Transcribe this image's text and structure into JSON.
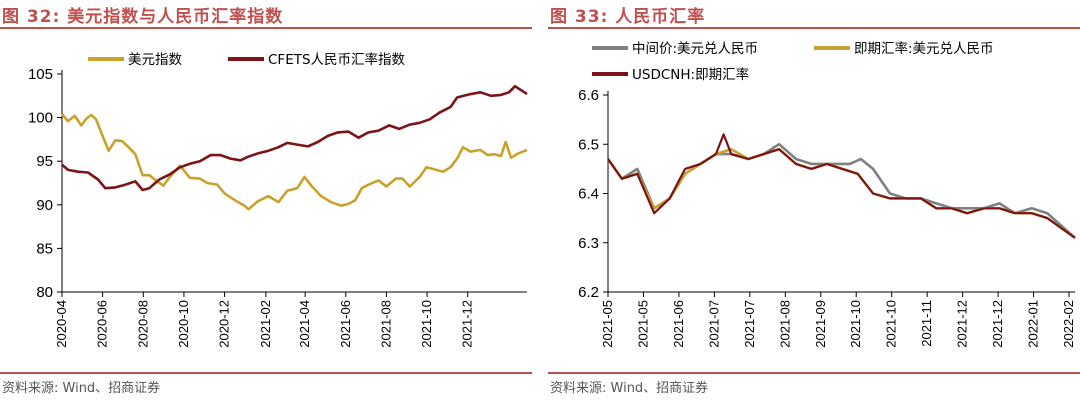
{
  "panels": [
    {
      "figure_title": "图 32:  美元指数与人民币汇率指数",
      "source": "资料来源:  Wind、招商证券",
      "chart_data": {
        "type": "line",
        "title": "",
        "xlabel": "",
        "ylabel": "",
        "ylim": [
          80,
          105
        ],
        "yticks": [
          80,
          85,
          90,
          95,
          100,
          105
        ],
        "grid": false,
        "legend": "top",
        "xlim": [
          "2020-04-01",
          "2022-02-28"
        ],
        "xticks": [
          "2020-04",
          "2020-06",
          "2020-08",
          "2020-10",
          "2020-12",
          "2021-02",
          "2021-04",
          "2021-06",
          "2021-08",
          "2021-10",
          "2021-12"
        ],
        "series": [
          {
            "name": "美元指数",
            "color": "#c9a22c",
            "points": [
              [
                "2020-04-01",
                100.4
              ],
              [
                "2020-04-10",
                99.6
              ],
              [
                "2020-04-20",
                100.2
              ],
              [
                "2020-04-30",
                99.1
              ],
              [
                "2020-05-08",
                99.9
              ],
              [
                "2020-05-15",
                100.3
              ],
              [
                "2020-05-22",
                99.8
              ],
              [
                "2020-06-01",
                97.9
              ],
              [
                "2020-06-10",
                96.2
              ],
              [
                "2020-06-20",
                97.4
              ],
              [
                "2020-06-30",
                97.3
              ],
              [
                "2020-07-10",
                96.6
              ],
              [
                "2020-07-20",
                95.8
              ],
              [
                "2020-07-31",
                93.4
              ],
              [
                "2020-08-10",
                93.4
              ],
              [
                "2020-08-20",
                92.8
              ],
              [
                "2020-08-31",
                92.2
              ],
              [
                "2020-09-10",
                93.2
              ],
              [
                "2020-09-25",
                94.5
              ],
              [
                "2020-10-10",
                93.1
              ],
              [
                "2020-10-25",
                93.0
              ],
              [
                "2020-11-05",
                92.5
              ],
              [
                "2020-11-20",
                92.3
              ],
              [
                "2020-12-01",
                91.3
              ],
              [
                "2020-12-15",
                90.6
              ],
              [
                "2020-12-31",
                89.9
              ],
              [
                "2021-01-06",
                89.5
              ],
              [
                "2021-01-20",
                90.4
              ],
              [
                "2021-02-05",
                91.0
              ],
              [
                "2021-02-20",
                90.3
              ],
              [
                "2021-03-05",
                91.6
              ],
              [
                "2021-03-20",
                91.9
              ],
              [
                "2021-03-31",
                93.2
              ],
              [
                "2021-04-10",
                92.2
              ],
              [
                "2021-04-25",
                91.0
              ],
              [
                "2021-05-10",
                90.3
              ],
              [
                "2021-05-25",
                89.9
              ],
              [
                "2021-06-05",
                90.1
              ],
              [
                "2021-06-15",
                90.5
              ],
              [
                "2021-06-25",
                91.9
              ],
              [
                "2021-07-05",
                92.3
              ],
              [
                "2021-07-20",
                92.8
              ],
              [
                "2021-08-01",
                92.1
              ],
              [
                "2021-08-15",
                93.0
              ],
              [
                "2021-08-25",
                93.0
              ],
              [
                "2021-09-05",
                92.1
              ],
              [
                "2021-09-20",
                93.2
              ],
              [
                "2021-09-30",
                94.3
              ],
              [
                "2021-10-10",
                94.1
              ],
              [
                "2021-10-25",
                93.8
              ],
              [
                "2021-11-05",
                94.3
              ],
              [
                "2021-11-15",
                95.3
              ],
              [
                "2021-11-24",
                96.6
              ],
              [
                "2021-12-05",
                96.1
              ],
              [
                "2021-12-20",
                96.3
              ],
              [
                "2021-12-31",
                95.7
              ],
              [
                "2022-01-10",
                95.8
              ],
              [
                "2022-01-20",
                95.6
              ],
              [
                "2022-01-27",
                97.2
              ],
              [
                "2022-02-04",
                95.4
              ],
              [
                "2022-02-15",
                95.9
              ],
              [
                "2022-02-28",
                96.3
              ]
            ]
          },
          {
            "name": "CFETS人民币汇率指数",
            "color": "#7b1416",
            "points": [
              [
                "2020-04-01",
                94.6
              ],
              [
                "2020-04-10",
                94.0
              ],
              [
                "2020-04-25",
                93.8
              ],
              [
                "2020-05-10",
                93.7
              ],
              [
                "2020-05-25",
                92.9
              ],
              [
                "2020-06-05",
                91.9
              ],
              [
                "2020-06-20",
                92.0
              ],
              [
                "2020-07-05",
                92.3
              ],
              [
                "2020-07-20",
                92.7
              ],
              [
                "2020-07-31",
                91.7
              ],
              [
                "2020-08-10",
                91.9
              ],
              [
                "2020-08-25",
                92.9
              ],
              [
                "2020-09-10",
                93.5
              ],
              [
                "2020-09-25",
                94.3
              ],
              [
                "2020-10-10",
                94.7
              ],
              [
                "2020-10-25",
                95.0
              ],
              [
                "2020-11-10",
                95.7
              ],
              [
                "2020-11-25",
                95.7
              ],
              [
                "2020-12-10",
                95.3
              ],
              [
                "2020-12-25",
                95.1
              ],
              [
                "2021-01-05",
                95.5
              ],
              [
                "2021-01-20",
                95.9
              ],
              [
                "2021-02-05",
                96.2
              ],
              [
                "2021-02-20",
                96.6
              ],
              [
                "2021-03-05",
                97.1
              ],
              [
                "2021-03-20",
                96.9
              ],
              [
                "2021-04-05",
                96.7
              ],
              [
                "2021-04-20",
                97.2
              ],
              [
                "2021-05-05",
                97.9
              ],
              [
                "2021-05-20",
                98.3
              ],
              [
                "2021-06-05",
                98.4
              ],
              [
                "2021-06-20",
                97.7
              ],
              [
                "2021-07-05",
                98.3
              ],
              [
                "2021-07-20",
                98.5
              ],
              [
                "2021-08-05",
                99.1
              ],
              [
                "2021-08-20",
                98.7
              ],
              [
                "2021-09-05",
                99.2
              ],
              [
                "2021-09-20",
                99.4
              ],
              [
                "2021-10-05",
                99.8
              ],
              [
                "2021-10-20",
                100.6
              ],
              [
                "2021-11-05",
                101.2
              ],
              [
                "2021-11-15",
                102.3
              ],
              [
                "2021-11-25",
                102.5
              ],
              [
                "2021-12-05",
                102.7
              ],
              [
                "2021-12-20",
                102.9
              ],
              [
                "2022-01-05",
                102.5
              ],
              [
                "2022-01-20",
                102.6
              ],
              [
                "2022-02-01",
                102.9
              ],
              [
                "2022-02-10",
                103.6
              ],
              [
                "2022-02-20",
                103.1
              ],
              [
                "2022-02-28",
                102.7
              ]
            ]
          }
        ]
      }
    },
    {
      "figure_title": "图 33:  人民币汇率",
      "source": "资料来源:  Wind、招商证券",
      "chart_data": {
        "type": "line",
        "title": "",
        "xlabel": "",
        "ylabel": "",
        "ylim": [
          6.2,
          6.6
        ],
        "yticks": [
          6.2,
          6.3,
          6.4,
          6.5,
          6.6
        ],
        "grid": false,
        "legend": "top",
        "xlim": [
          "2021-05-01",
          "2022-02-28"
        ],
        "xticks": [
          "2021-05",
          "2021-05",
          "2021-06",
          "2021-07",
          "2021-07",
          "2021-08",
          "2021-09",
          "2021-10",
          "2021-10",
          "2021-11",
          "2021-12",
          "2021-12",
          "2022-01",
          "2022-02"
        ],
        "series": [
          {
            "name": "中间价:美元兑人民币",
            "color": "#808080",
            "points": [
              [
                "2021-05-01",
                6.47
              ],
              [
                "2021-05-10",
                6.43
              ],
              [
                "2021-05-20",
                6.45
              ],
              [
                "2021-05-31",
                6.37
              ],
              [
                "2021-06-10",
                6.39
              ],
              [
                "2021-06-20",
                6.44
              ],
              [
                "2021-06-30",
                6.46
              ],
              [
                "2021-07-10",
                6.48
              ],
              [
                "2021-07-20",
                6.48
              ],
              [
                "2021-07-31",
                6.47
              ],
              [
                "2021-08-10",
                6.48
              ],
              [
                "2021-08-20",
                6.5
              ],
              [
                "2021-08-31",
                6.47
              ],
              [
                "2021-09-10",
                6.46
              ],
              [
                "2021-09-20",
                6.46
              ],
              [
                "2021-09-30",
                6.46
              ],
              [
                "2021-10-05",
                6.46
              ],
              [
                "2021-10-12",
                6.47
              ],
              [
                "2021-10-20",
                6.45
              ],
              [
                "2021-10-31",
                6.4
              ],
              [
                "2021-11-10",
                6.39
              ],
              [
                "2021-11-20",
                6.39
              ],
              [
                "2021-11-30",
                6.38
              ],
              [
                "2021-12-10",
                6.37
              ],
              [
                "2021-12-20",
                6.37
              ],
              [
                "2021-12-31",
                6.37
              ],
              [
                "2022-01-10",
                6.38
              ],
              [
                "2022-01-20",
                6.36
              ],
              [
                "2022-01-31",
                6.37
              ],
              [
                "2022-02-10",
                6.36
              ],
              [
                "2022-02-28",
                6.31
              ]
            ]
          },
          {
            "name": "即期汇率:美元兑人民币",
            "color": "#c9a22c",
            "points": [
              [
                "2021-05-01",
                6.47
              ],
              [
                "2021-05-10",
                6.43
              ],
              [
                "2021-05-20",
                6.44
              ],
              [
                "2021-05-31",
                6.37
              ],
              [
                "2021-06-10",
                6.39
              ],
              [
                "2021-06-20",
                6.44
              ],
              [
                "2021-06-30",
                6.46
              ],
              [
                "2021-07-10",
                6.48
              ],
              [
                "2021-07-20",
                6.49
              ],
              [
                "2021-07-31",
                6.47
              ],
              [
                "2021-08-10",
                6.48
              ],
              [
                "2021-08-20",
                6.49
              ],
              [
                "2021-08-31",
                6.46
              ],
              [
                "2021-09-10",
                6.45
              ],
              [
                "2021-09-20",
                6.46
              ],
              [
                "2021-09-30",
                6.45
              ],
              [
                "2021-10-10",
                6.44
              ],
              [
                "2021-10-20",
                6.4
              ],
              [
                "2021-10-31",
                6.39
              ],
              [
                "2021-11-10",
                6.39
              ],
              [
                "2021-11-20",
                6.39
              ],
              [
                "2021-11-30",
                6.37
              ],
              [
                "2021-12-10",
                6.37
              ],
              [
                "2021-12-20",
                6.36
              ],
              [
                "2021-12-31",
                6.37
              ],
              [
                "2022-01-10",
                6.37
              ],
              [
                "2022-01-20",
                6.36
              ],
              [
                "2022-01-31",
                6.36
              ],
              [
                "2022-02-10",
                6.35
              ],
              [
                "2022-02-28",
                6.31
              ]
            ]
          },
          {
            "name": "USDCNH:即期汇率",
            "color": "#7b1416",
            "points": [
              [
                "2021-05-01",
                6.47
              ],
              [
                "2021-05-10",
                6.43
              ],
              [
                "2021-05-20",
                6.44
              ],
              [
                "2021-05-31",
                6.36
              ],
              [
                "2021-06-10",
                6.39
              ],
              [
                "2021-06-20",
                6.45
              ],
              [
                "2021-06-30",
                6.46
              ],
              [
                "2021-07-10",
                6.48
              ],
              [
                "2021-07-15",
                6.52
              ],
              [
                "2021-07-20",
                6.48
              ],
              [
                "2021-07-31",
                6.47
              ],
              [
                "2021-08-10",
                6.48
              ],
              [
                "2021-08-20",
                6.49
              ],
              [
                "2021-08-31",
                6.46
              ],
              [
                "2021-09-10",
                6.45
              ],
              [
                "2021-09-20",
                6.46
              ],
              [
                "2021-09-30",
                6.45
              ],
              [
                "2021-10-10",
                6.44
              ],
              [
                "2021-10-20",
                6.4
              ],
              [
                "2021-10-31",
                6.39
              ],
              [
                "2021-11-10",
                6.39
              ],
              [
                "2021-11-20",
                6.39
              ],
              [
                "2021-11-30",
                6.37
              ],
              [
                "2021-12-10",
                6.37
              ],
              [
                "2021-12-20",
                6.36
              ],
              [
                "2021-12-31",
                6.37
              ],
              [
                "2022-01-10",
                6.37
              ],
              [
                "2022-01-20",
                6.36
              ],
              [
                "2022-01-31",
                6.36
              ],
              [
                "2022-02-10",
                6.35
              ],
              [
                "2022-02-28",
                6.31
              ]
            ]
          }
        ]
      }
    }
  ]
}
